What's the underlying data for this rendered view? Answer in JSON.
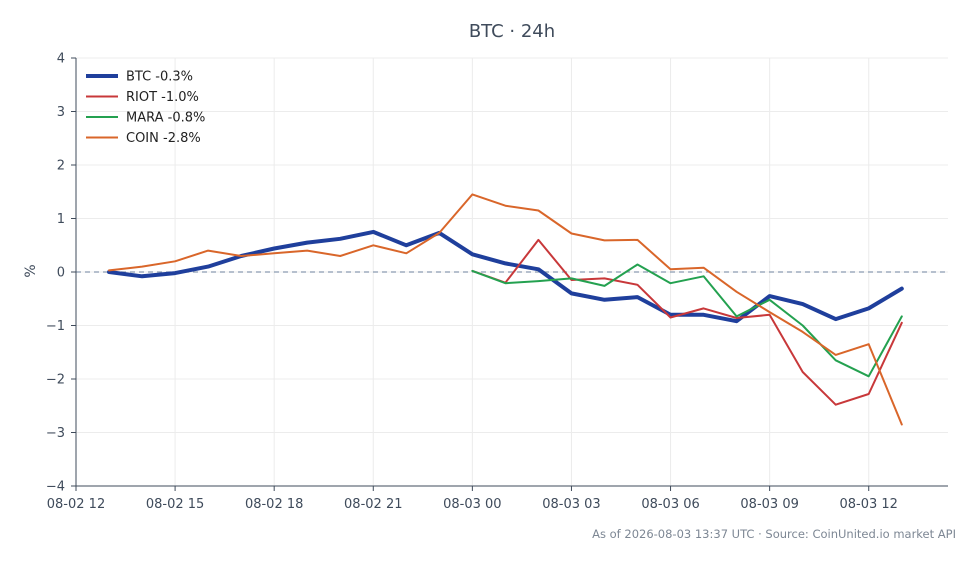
{
  "chart_data": {
    "type": "line",
    "title": "BTC · 24h",
    "ylabel": "%",
    "xlabel": "",
    "ylim": [
      -4,
      4
    ],
    "yticks": [
      4,
      3,
      2,
      1,
      0,
      -1,
      -2,
      -3,
      -4
    ],
    "ytick_labels": [
      "4",
      "3",
      "2",
      "1",
      "0",
      "−1",
      "−2",
      "−3",
      "−4"
    ],
    "xlim": [
      0,
      26.4
    ],
    "xticks": [
      0,
      3,
      6,
      9,
      12,
      15,
      18,
      21,
      24
    ],
    "xtick_labels": [
      "08-02 12",
      "08-02 15",
      "08-02 18",
      "08-02 21",
      "08-03 00",
      "08-03 03",
      "08-03 06",
      "08-03 09",
      "08-03 12"
    ],
    "zero_line": true,
    "grid": true,
    "legend_position": "top-left",
    "series": [
      {
        "name": "BTC -0.3%",
        "color": "#1f3f9c",
        "width": 4,
        "x": [
          1,
          2,
          3,
          4,
          5,
          6,
          7,
          8,
          9,
          10,
          11,
          12,
          13,
          14,
          15,
          16,
          17,
          18,
          19,
          20,
          21,
          22,
          23,
          24,
          25
        ],
        "y": [
          0.0,
          -0.08,
          -0.02,
          0.1,
          0.3,
          0.44,
          0.55,
          0.62,
          0.75,
          0.5,
          0.73,
          0.33,
          0.16,
          0.05,
          -0.4,
          -0.52,
          -0.47,
          -0.8,
          -0.8,
          -0.92,
          -0.45,
          -0.6,
          -0.88,
          -0.68,
          -0.31
        ]
      },
      {
        "name": "RIOT -1.0%",
        "color": "#c8383a",
        "width": 2,
        "x": [
          12,
          13,
          14,
          15,
          16,
          17,
          18,
          19,
          20,
          21,
          22,
          23,
          24,
          25
        ],
        "y": [
          0.02,
          -0.2,
          0.6,
          -0.15,
          -0.12,
          -0.24,
          -0.85,
          -0.68,
          -0.86,
          -0.8,
          -1.87,
          -2.48,
          -2.28,
          -0.95
        ]
      },
      {
        "name": "MARA -0.8%",
        "color": "#24a150",
        "width": 2,
        "x": [
          12,
          13,
          14,
          15,
          16,
          17,
          18,
          19,
          20,
          21,
          22,
          23,
          24,
          25
        ],
        "y": [
          0.02,
          -0.21,
          -0.17,
          -0.12,
          -0.26,
          0.14,
          -0.21,
          -0.08,
          -0.83,
          -0.52,
          -1.0,
          -1.65,
          -1.95,
          -0.83
        ]
      },
      {
        "name": "COIN -2.8%",
        "color": "#d9662a",
        "width": 2,
        "x": [
          1,
          2,
          3,
          4,
          5,
          6,
          7,
          8,
          9,
          10,
          11,
          12,
          13,
          14,
          15,
          16,
          17,
          18,
          19,
          20,
          21,
          22,
          23,
          24,
          25
        ],
        "y": [
          0.03,
          0.1,
          0.2,
          0.4,
          0.3,
          0.35,
          0.4,
          0.3,
          0.5,
          0.35,
          0.73,
          1.45,
          1.24,
          1.15,
          0.72,
          0.59,
          0.6,
          0.05,
          0.08,
          -0.37,
          -0.75,
          -1.12,
          -1.55,
          -1.35,
          -2.85
        ]
      }
    ],
    "footer": "As of 2026-08-03 13:37 UTC · Source: CoinUnited.io market API"
  }
}
